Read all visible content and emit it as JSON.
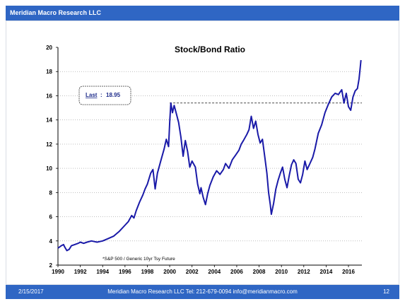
{
  "header": {
    "company": "Meridian Macro Research LLC"
  },
  "footer": {
    "date": "2/15/2017",
    "contact": "Meridian Macro Research LLC   Tel: 212-679-0094   info@meridianmacro.com",
    "page": "12"
  },
  "colors": {
    "header_bg": "#2f66c4",
    "line": "#1a1aa8",
    "reference_line": "#333333"
  },
  "chart_data": {
    "type": "line",
    "title": "Stock/Bond Ratio",
    "xlabel": "",
    "ylabel": "",
    "xlim": [
      1990,
      2017.2
    ],
    "ylim": [
      2,
      20
    ],
    "x_ticks": [
      "1990",
      "1992",
      "1994",
      "1996",
      "1998",
      "2000",
      "2002",
      "2004",
      "2006",
      "2008",
      "2010",
      "2012",
      "2014",
      "2016"
    ],
    "y_ticks": [
      "2",
      "4",
      "6",
      "8",
      "10",
      "12",
      "14",
      "16",
      "18",
      "20"
    ],
    "grid": "horizontal dotted",
    "annotation": {
      "label": "Last",
      "value": "18.95"
    },
    "reference_line": {
      "y": 15.4,
      "x_start": 2000.0,
      "x_end": 2017.2
    },
    "footnote": "*S&P 500 / Generic 10yr Tsy Future",
    "series": [
      {
        "values": [
          [
            1990.0,
            3.4
          ],
          [
            1990.3,
            3.6
          ],
          [
            1990.5,
            3.7
          ],
          [
            1990.6,
            3.5
          ],
          [
            1990.8,
            3.2
          ],
          [
            1991.0,
            3.3
          ],
          [
            1991.2,
            3.6
          ],
          [
            1991.5,
            3.7
          ],
          [
            1991.8,
            3.8
          ],
          [
            1992.0,
            3.9
          ],
          [
            1992.3,
            3.8
          ],
          [
            1992.6,
            3.9
          ],
          [
            1993.0,
            4.0
          ],
          [
            1993.5,
            3.9
          ],
          [
            1994.0,
            4.0
          ],
          [
            1994.5,
            4.2
          ],
          [
            1995.0,
            4.4
          ],
          [
            1995.5,
            4.8
          ],
          [
            1996.0,
            5.3
          ],
          [
            1996.3,
            5.6
          ],
          [
            1996.6,
            6.1
          ],
          [
            1996.8,
            5.9
          ],
          [
            1997.0,
            6.5
          ],
          [
            1997.3,
            7.2
          ],
          [
            1997.6,
            7.8
          ],
          [
            1997.8,
            8.3
          ],
          [
            1998.0,
            8.7
          ],
          [
            1998.3,
            9.6
          ],
          [
            1998.5,
            9.9
          ],
          [
            1998.7,
            8.3
          ],
          [
            1998.9,
            9.6
          ],
          [
            1999.2,
            10.6
          ],
          [
            1999.5,
            11.6
          ],
          [
            1999.7,
            12.4
          ],
          [
            1999.9,
            11.8
          ],
          [
            2000.0,
            13.8
          ],
          [
            2000.1,
            15.4
          ],
          [
            2000.25,
            14.6
          ],
          [
            2000.4,
            15.2
          ],
          [
            2000.6,
            14.5
          ],
          [
            2000.8,
            13.8
          ],
          [
            2001.0,
            12.6
          ],
          [
            2001.2,
            11.0
          ],
          [
            2001.4,
            12.3
          ],
          [
            2001.6,
            11.4
          ],
          [
            2001.8,
            10.1
          ],
          [
            2002.0,
            10.6
          ],
          [
            2002.3,
            10.1
          ],
          [
            2002.5,
            8.7
          ],
          [
            2002.7,
            7.9
          ],
          [
            2002.8,
            8.4
          ],
          [
            2003.0,
            7.6
          ],
          [
            2003.2,
            7.0
          ],
          [
            2003.4,
            7.9
          ],
          [
            2003.6,
            8.6
          ],
          [
            2003.9,
            9.3
          ],
          [
            2004.2,
            9.8
          ],
          [
            2004.5,
            9.5
          ],
          [
            2004.8,
            9.9
          ],
          [
            2005.0,
            10.4
          ],
          [
            2005.3,
            10.0
          ],
          [
            2005.6,
            10.7
          ],
          [
            2005.9,
            11.1
          ],
          [
            2006.2,
            11.5
          ],
          [
            2006.4,
            12.0
          ],
          [
            2006.6,
            12.3
          ],
          [
            2006.9,
            12.8
          ],
          [
            2007.1,
            13.2
          ],
          [
            2007.3,
            14.3
          ],
          [
            2007.5,
            13.3
          ],
          [
            2007.7,
            13.9
          ],
          [
            2007.9,
            12.8
          ],
          [
            2008.1,
            12.1
          ],
          [
            2008.3,
            12.4
          ],
          [
            2008.5,
            11.0
          ],
          [
            2008.7,
            9.6
          ],
          [
            2008.85,
            8.0
          ],
          [
            2009.0,
            7.0
          ],
          [
            2009.1,
            6.2
          ],
          [
            2009.3,
            7.1
          ],
          [
            2009.5,
            8.3
          ],
          [
            2009.7,
            9.0
          ],
          [
            2009.9,
            9.6
          ],
          [
            2010.1,
            10.1
          ],
          [
            2010.3,
            9.1
          ],
          [
            2010.5,
            8.4
          ],
          [
            2010.7,
            9.4
          ],
          [
            2010.9,
            10.3
          ],
          [
            2011.1,
            10.7
          ],
          [
            2011.3,
            10.4
          ],
          [
            2011.5,
            9.1
          ],
          [
            2011.7,
            8.8
          ],
          [
            2011.9,
            9.5
          ],
          [
            2012.1,
            10.6
          ],
          [
            2012.3,
            9.9
          ],
          [
            2012.5,
            10.3
          ],
          [
            2012.8,
            10.9
          ],
          [
            2013.0,
            11.6
          ],
          [
            2013.3,
            12.9
          ],
          [
            2013.6,
            13.6
          ],
          [
            2013.9,
            14.6
          ],
          [
            2014.2,
            15.3
          ],
          [
            2014.5,
            15.9
          ],
          [
            2014.8,
            16.2
          ],
          [
            2015.1,
            16.1
          ],
          [
            2015.4,
            16.5
          ],
          [
            2015.6,
            15.4
          ],
          [
            2015.8,
            16.2
          ],
          [
            2016.0,
            15.1
          ],
          [
            2016.2,
            14.8
          ],
          [
            2016.4,
            15.9
          ],
          [
            2016.6,
            16.4
          ],
          [
            2016.8,
            16.6
          ],
          [
            2016.95,
            17.4
          ],
          [
            2017.05,
            18.3
          ],
          [
            2017.12,
            18.95
          ]
        ]
      }
    ]
  }
}
